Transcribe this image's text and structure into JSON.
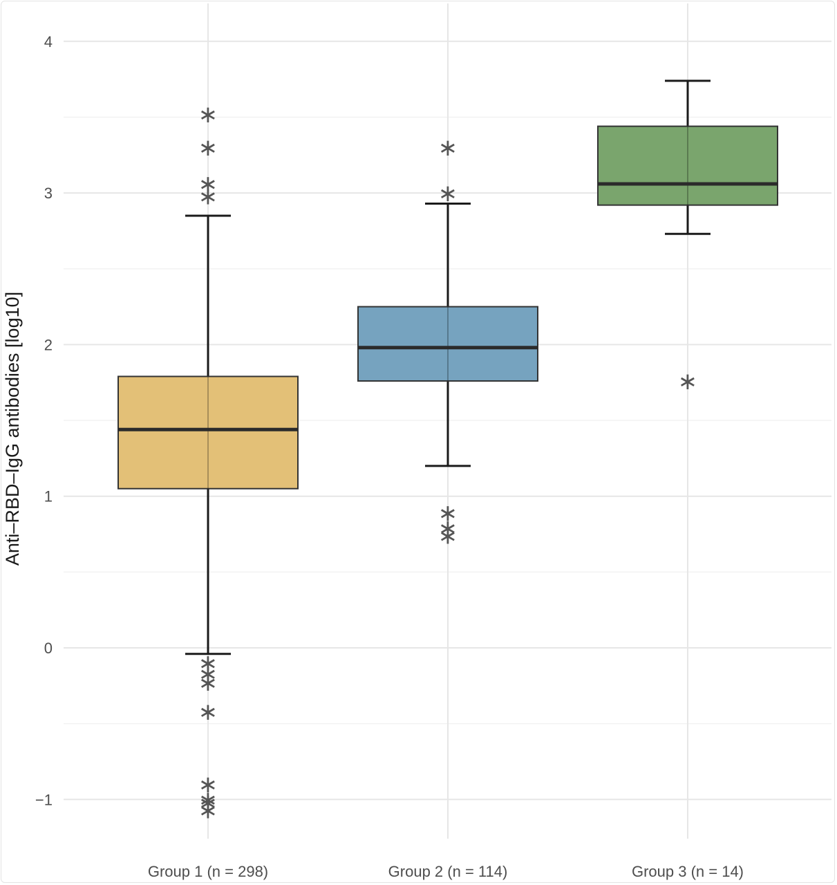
{
  "chart_data": {
    "type": "box",
    "title": "",
    "xlabel": "",
    "ylabel": "Anti–RBD–IgG antibodies [log10]",
    "ylim": [
      -1.35,
      4.25
    ],
    "yticks": [
      -1,
      0,
      1,
      2,
      3,
      4
    ],
    "ytick_labels": [
      "−1",
      "0",
      "1",
      "2",
      "3",
      "4"
    ],
    "grid": true,
    "outlier_marker": "∗",
    "categories": [
      "Group 1 (n = 298)",
      "Group 2 (n = 114)",
      "Group 3 (n = 14)"
    ],
    "series": [
      {
        "name": "Group 1 (n = 298)",
        "color": "#e3c077",
        "whisker_low": -0.04,
        "q1": 1.05,
        "median": 1.44,
        "q3": 1.79,
        "whisker_high": 2.85,
        "outliers": [
          3.53,
          3.31,
          3.07,
          2.99,
          -0.09,
          -0.16,
          -0.22,
          -0.41,
          -0.89,
          -0.99,
          -1.01,
          -1.06
        ]
      },
      {
        "name": "Group 2 (n = 114)",
        "color": "#76a3bf",
        "whisker_low": 1.2,
        "q1": 1.76,
        "median": 1.98,
        "q3": 2.25,
        "whisker_high": 2.93,
        "outliers": [
          3.31,
          3.01,
          0.9,
          0.8,
          0.75
        ]
      },
      {
        "name": "Group 3 (n = 14)",
        "color": "#7aa56d",
        "whisker_low": 2.73,
        "q1": 2.92,
        "median": 3.06,
        "q3": 3.44,
        "whisker_high": 3.74,
        "outliers": [
          1.77
        ]
      }
    ]
  }
}
